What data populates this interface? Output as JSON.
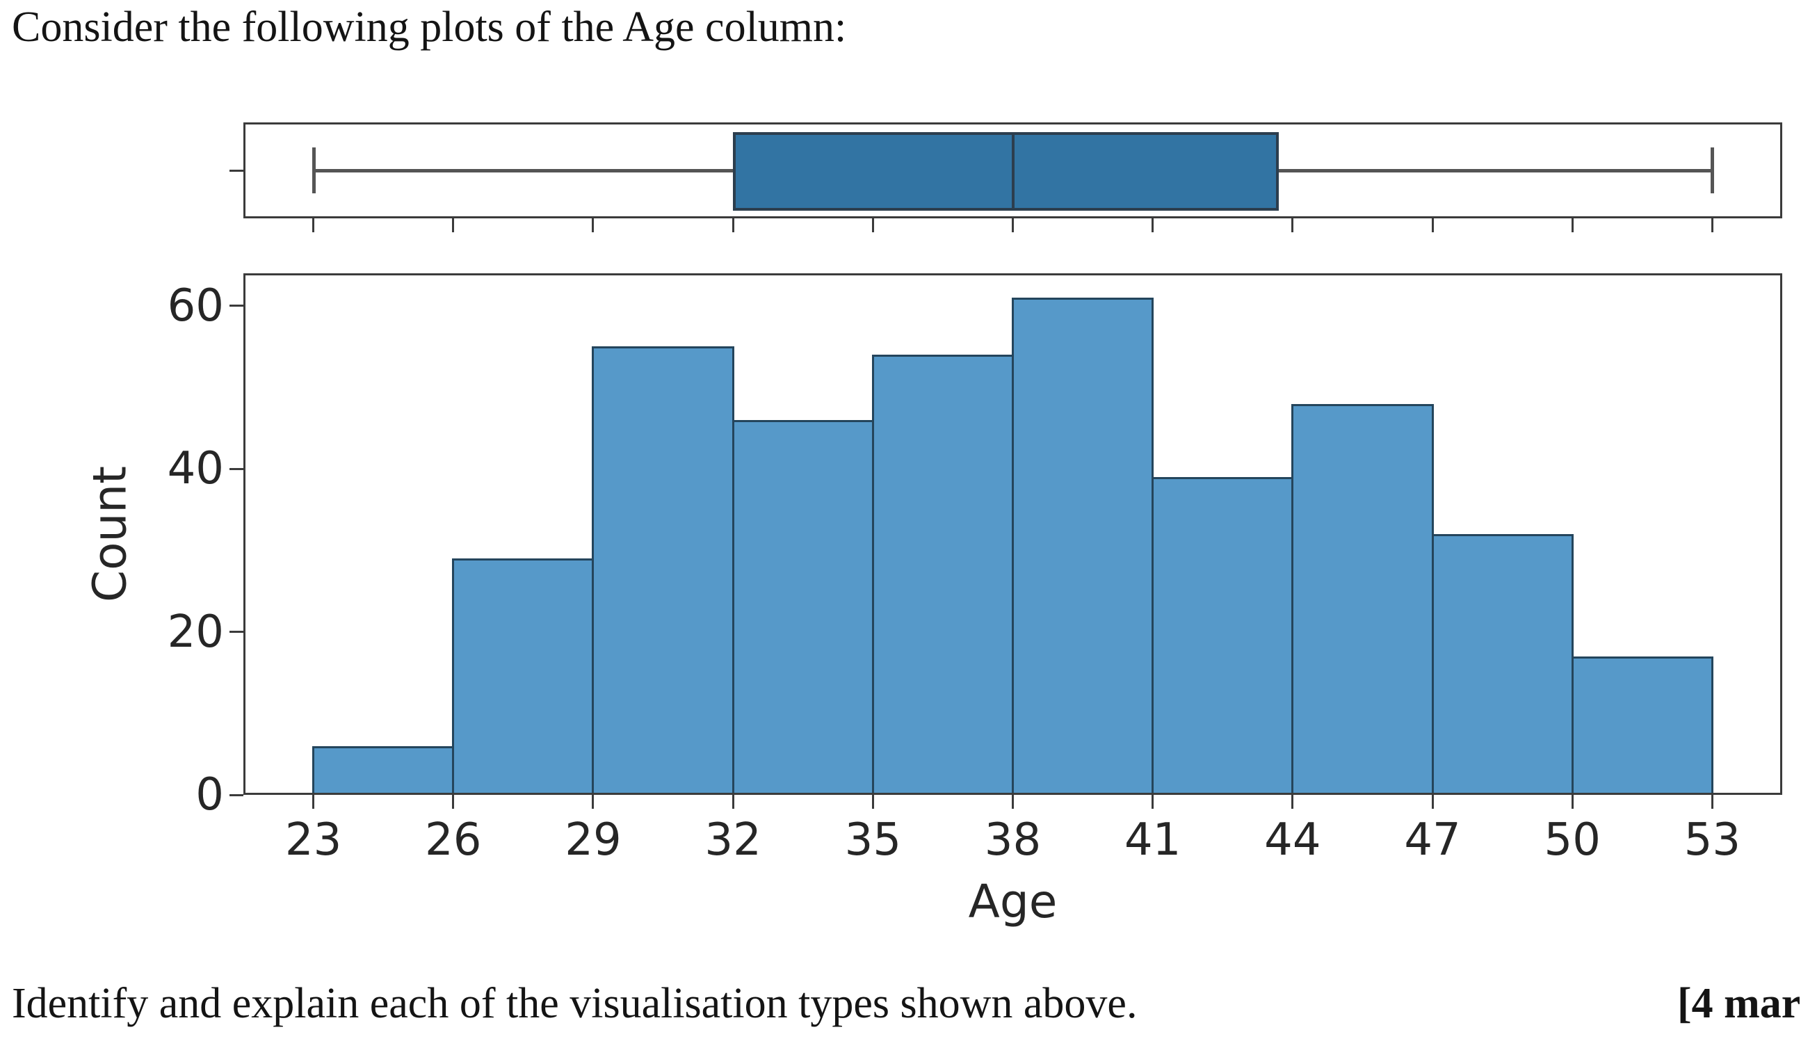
{
  "page": {
    "intro_text": "Consider the following plots of the Age column:",
    "question_text": "Identify and explain each of the visualisation types shown above.",
    "marks_label": "[4 mar"
  },
  "chart_data": [
    {
      "type": "boxplot",
      "orientation": "horizontal",
      "variable": "Age",
      "stats": {
        "whisker_low": 23,
        "q1": 32,
        "median": 38,
        "q3": 43.7,
        "whisker_high": 53
      },
      "xlim": [
        21.5,
        54.5
      ],
      "x_ticks": [
        23,
        26,
        29,
        32,
        35,
        38,
        41,
        44,
        47,
        50,
        53
      ],
      "x_tick_labels_visible": false,
      "grid": false,
      "box_fill_color": "#3274a3",
      "box_edge_color": "#2c3e4e",
      "whisker_color": "#555555"
    },
    {
      "type": "histogram",
      "title": "",
      "xlabel": "Age",
      "ylabel": "Count",
      "bin_edges": [
        23,
        26,
        29,
        32,
        35,
        38,
        41,
        44,
        47,
        50,
        53
      ],
      "counts": [
        6,
        29,
        55,
        46,
        54,
        61,
        39,
        48,
        32,
        17
      ],
      "x_ticks": [
        23,
        26,
        29,
        32,
        35,
        38,
        41,
        44,
        47,
        50,
        53
      ],
      "y_ticks": [
        0,
        20,
        40,
        60
      ],
      "xlim": [
        21.5,
        54.5
      ],
      "ylim": [
        0,
        64
      ],
      "grid": false,
      "legend": false,
      "bar_fill_color": "#5699c9",
      "bar_edge_color": "#24455c"
    }
  ]
}
